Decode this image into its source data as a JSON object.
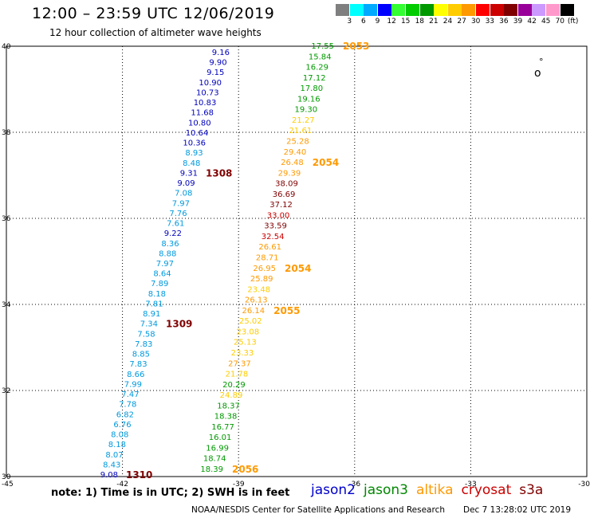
{
  "header": {
    "title": "12:00 – 23:59 UTC 12/06/2019",
    "subtitle": "12 hour collection of altimeter wave heights"
  },
  "colorbar": {
    "labels": [
      "3",
      "6",
      "9",
      "12",
      "15",
      "18",
      "21",
      "24",
      "27",
      "30",
      "33",
      "36",
      "39",
      "42",
      "45",
      "70"
    ],
    "unit": "(ft)",
    "colors": [
      "#7f7f7f",
      "#00ffff",
      "#00aaff",
      "#0000ff",
      "#33ff33",
      "#00cc00",
      "#009900",
      "#ffff00",
      "#ffcc00",
      "#ff9900",
      "#ff0000",
      "#cc0000",
      "#800000",
      "#990099",
      "#cc99ff",
      "#ff99cc",
      "#000000"
    ]
  },
  "axes": {
    "lat_labels": [
      "40",
      "38",
      "36",
      "34",
      "32",
      "30"
    ],
    "lon_labels": [
      "-45",
      "-42",
      "-39",
      "-36",
      "-33",
      "-30"
    ]
  },
  "colors": {
    "jason2": "#0000cc",
    "jason3": "#008800",
    "altika": "#ff9900",
    "cryosat": "#cc0000",
    "s3a": "#800000",
    "swh_dark_blue": "#0000bb",
    "swh_light_blue": "#0099dd",
    "swh_green": "#009900",
    "swh_yellow": "#ffcc00",
    "swh_orange": "#ff9900",
    "swh_red": "#cc0000",
    "swh_maroon": "#800000"
  },
  "track_west": {
    "values": [
      "9.16",
      "9.90",
      "9.15",
      "10.90",
      "10.73",
      "10.83",
      "11.68",
      "10.80",
      "10.64",
      "10.36",
      "8.93",
      "8.48",
      "9.31",
      "9.09",
      "7.08",
      "7.97",
      "7.76",
      "7.61",
      "9.22",
      "8.36",
      "8.88",
      "7.97",
      "8.64",
      "7.89",
      "8.18",
      "7.81",
      "8.91",
      "7.34",
      "7.58",
      "7.83",
      "8.85",
      "7.83",
      "8.66",
      "7.99",
      "7.47",
      "7.78",
      "6.82",
      "6.76",
      "8.08",
      "8.18",
      "8.07",
      "8.43",
      "9.08"
    ],
    "colors": [
      "swh_dark_blue",
      "swh_dark_blue",
      "swh_dark_blue",
      "swh_dark_blue",
      "swh_dark_blue",
      "swh_dark_blue",
      "swh_dark_blue",
      "swh_dark_blue",
      "swh_dark_blue",
      "swh_dark_blue",
      "swh_light_blue",
      "swh_light_blue",
      "swh_dark_blue",
      "swh_dark_blue",
      "swh_light_blue",
      "swh_light_blue",
      "swh_light_blue",
      "swh_light_blue",
      "swh_dark_blue",
      "swh_light_blue",
      "swh_light_blue",
      "swh_light_blue",
      "swh_light_blue",
      "swh_light_blue",
      "swh_light_blue",
      "swh_light_blue",
      "swh_light_blue",
      "swh_light_blue",
      "swh_light_blue",
      "swh_light_blue",
      "swh_light_blue",
      "swh_light_blue",
      "swh_light_blue",
      "swh_light_blue",
      "swh_light_blue",
      "swh_light_blue",
      "swh_light_blue",
      "swh_light_blue",
      "swh_light_blue",
      "swh_light_blue",
      "swh_light_blue",
      "swh_light_blue",
      "swh_dark_blue"
    ],
    "times": [
      {
        "label": "1308",
        "index": 12
      },
      {
        "label": "1309",
        "index": 27
      },
      {
        "label": "1310",
        "index": 42
      }
    ]
  },
  "track_east": {
    "values": [
      "17.55",
      "15.84",
      "16.29",
      "17.12",
      "17.80",
      "19.16",
      "19.30",
      "21.27",
      "21.61",
      "25.28",
      "29.40",
      "26.48",
      "29.39",
      "38.09",
      "36.69",
      "37.12",
      "33.00",
      "33.59",
      "32.54",
      "26.61",
      "28.71",
      "26.95",
      "25.89",
      "23.48",
      "26.13",
      "26.14",
      "25.02",
      "23.08",
      "25.13",
      "23.33",
      "27.37",
      "21.78",
      "20.29",
      "24.89",
      "18.37",
      "18.38",
      "16.77",
      "16.01",
      "16.99",
      "18.74",
      "18.39"
    ],
    "colors": [
      "swh_green",
      "swh_green",
      "swh_green",
      "swh_green",
      "swh_green",
      "swh_green",
      "swh_green",
      "swh_yellow",
      "swh_yellow",
      "swh_orange",
      "swh_orange",
      "swh_orange",
      "swh_orange",
      "swh_maroon",
      "swh_maroon",
      "swh_maroon",
      "swh_red",
      "swh_maroon",
      "swh_red",
      "swh_orange",
      "swh_orange",
      "swh_orange",
      "swh_orange",
      "swh_yellow",
      "swh_orange",
      "swh_orange",
      "swh_yellow",
      "swh_yellow",
      "swh_yellow",
      "swh_yellow",
      "swh_orange",
      "swh_yellow",
      "swh_green",
      "swh_yellow",
      "swh_green",
      "swh_green",
      "swh_green",
      "swh_green",
      "swh_green",
      "swh_green",
      "swh_green"
    ],
    "times": [
      {
        "label": "2053",
        "index": 0
      },
      {
        "label": "2054",
        "index": 11
      },
      {
        "label": "2054",
        "index": 21
      },
      {
        "label": "2055",
        "index": 25
      },
      {
        "label": "2056",
        "index": 40
      }
    ]
  },
  "island_marker": "o",
  "island_dot": "°",
  "footer": {
    "note": "note: 1) Time is in UTC; 2) SWH is in feet",
    "credit": "NOAA/NESDIS Center for Satellite Applications and Research",
    "timestamp": "Dec  7 13:28:02 UTC 2019"
  },
  "satellites": [
    {
      "name": "jason2",
      "color": "jason2"
    },
    {
      "name": "jason3",
      "color": "jason3"
    },
    {
      "name": "altika",
      "color": "altika"
    },
    {
      "name": "cryosat",
      "color": "cryosat"
    },
    {
      "name": "s3a",
      "color": "s3a"
    }
  ]
}
